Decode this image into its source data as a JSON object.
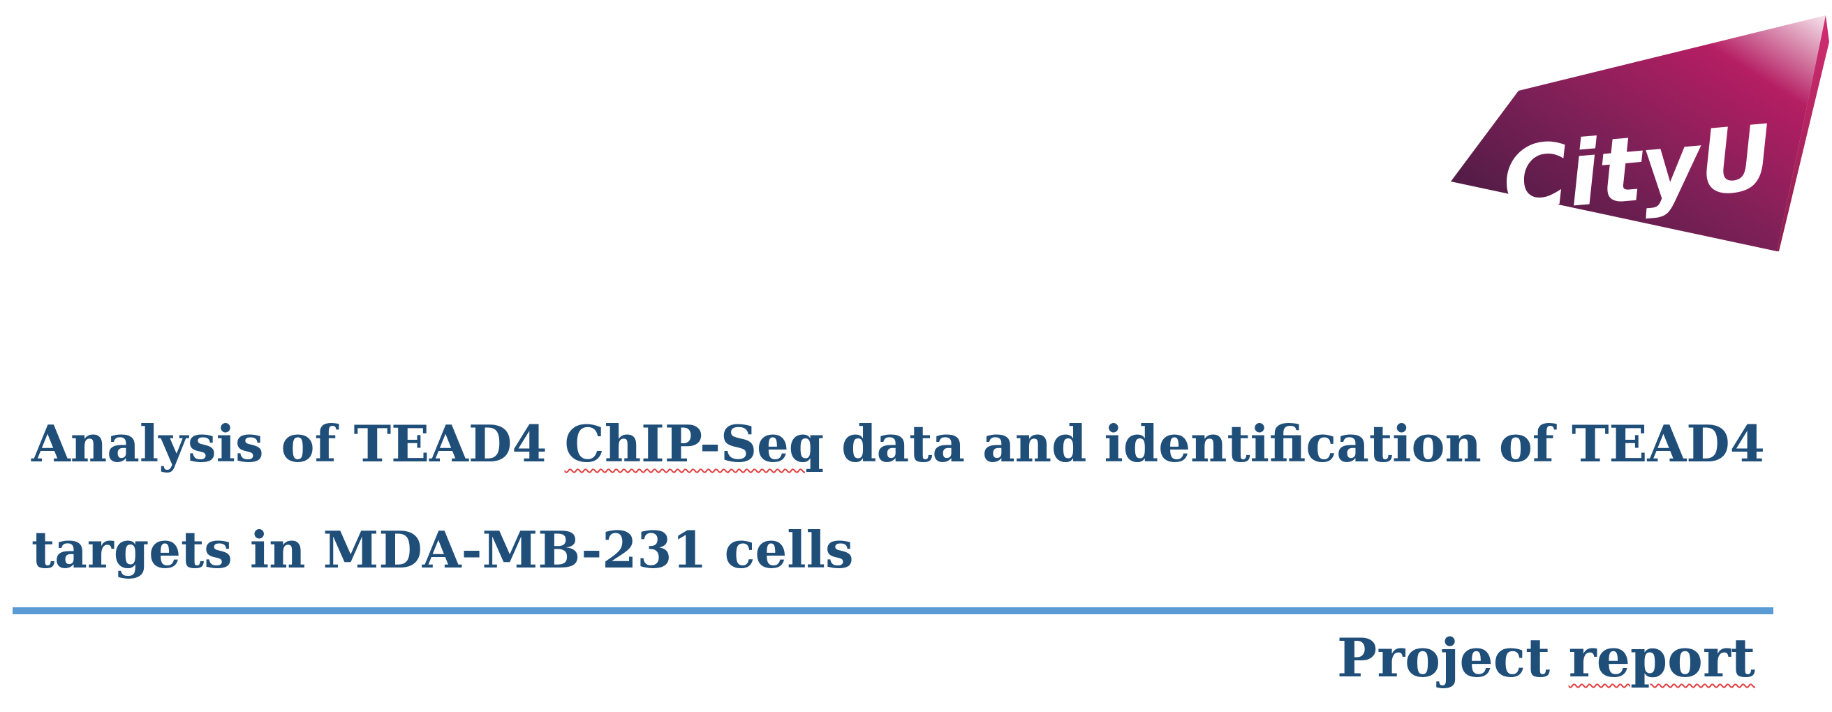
{
  "logo": {
    "text": "CityU"
  },
  "title": {
    "part1": "Analysis of TEAD4 ",
    "part2": "ChIP-Seq",
    "part3": " data and identification of TEAD4 targets in MDA-MB-231 cells"
  },
  "subtitle": {
    "part1": "Project ",
    "part2": "report"
  },
  "colors": {
    "title": "#1f4e79",
    "rule": "#5b9bd5",
    "logo_dark": "#4a1f45",
    "logo_accent": "#b51e63"
  }
}
